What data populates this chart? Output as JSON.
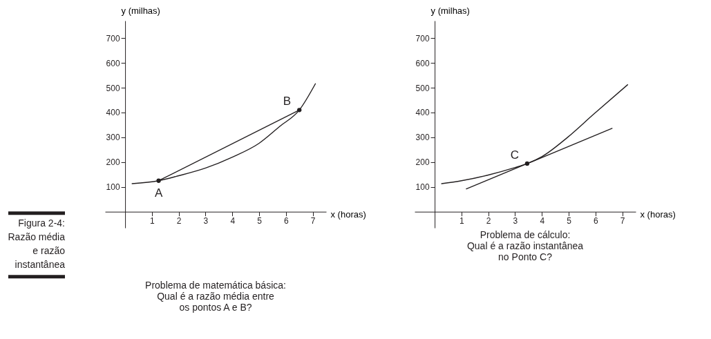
{
  "chart_data": [
    {
      "type": "line",
      "title": "Problema de matemática básica:",
      "subtitle": "Qual é a razão média entre os pontos A e B?",
      "xlabel": "x (horas)",
      "ylabel": "y (milhas)",
      "xlim": [
        -0.75,
        7.5
      ],
      "ylim": [
        -65,
        770
      ],
      "xticks": [
        1,
        2,
        3,
        4,
        5,
        6,
        7
      ],
      "yticks": [
        100,
        200,
        300,
        400,
        500,
        600,
        700
      ],
      "series": [
        {
          "color": "#231f20",
          "marker": "none",
          "x": [
            0.26,
            1.25,
            2,
            3,
            4,
            5,
            5.77,
            6.5,
            7.1
          ],
          "values": [
            113,
            125,
            145,
            176,
            220,
            276,
            344,
            410,
            516
          ]
        },
        {
          "color": "#231f20",
          "marker": "none",
          "x": [
            1.25,
            6.5
          ],
          "values": [
            125,
            410
          ]
        },
        {
          "type": "scatter",
          "marker": "circle",
          "color": "#231f20",
          "x": [
            1.25,
            6.5
          ],
          "values": [
            125,
            410
          ]
        }
      ],
      "annotations": [
        {
          "text": "A",
          "x": 1.25,
          "y": 125
        },
        {
          "text": "B",
          "x": 6.5,
          "y": 410
        },
        "Figura 2-4: Razão média e razão instantânea"
      ]
    },
    {
      "type": "line",
      "title": "Problema de cálculo:",
      "subtitle": "Qual é a razão instantânea no Ponto C?",
      "xlabel": "x (horas)",
      "ylabel": "y (milhas)",
      "xlim": [
        -0.75,
        7.5
      ],
      "ylim": [
        -65,
        770
      ],
      "xticks": [
        1,
        2,
        3,
        4,
        5,
        6,
        7
      ],
      "yticks": [
        100,
        200,
        300,
        400,
        500,
        600,
        700
      ],
      "series": [
        {
          "color": "#231f20",
          "marker": "none",
          "x": [
            0.26,
            1,
            2,
            3,
            3.45,
            4,
            4.96,
            5.92,
            7.2
          ],
          "values": [
            113,
            125,
            148,
            178,
            194,
            222,
            300,
            392,
            512
          ]
        },
        {
          "color": "#231f20",
          "marker": "none",
          "x": [
            1.18,
            6.62
          ],
          "values": [
            92,
            336
          ]
        },
        {
          "type": "scatter",
          "marker": "circle",
          "color": "#231f20",
          "x": [
            3.45
          ],
          "values": [
            194
          ]
        }
      ],
      "annotations": [
        {
          "text": "C",
          "x": 3.45,
          "y": 194
        }
      ]
    }
  ]
}
